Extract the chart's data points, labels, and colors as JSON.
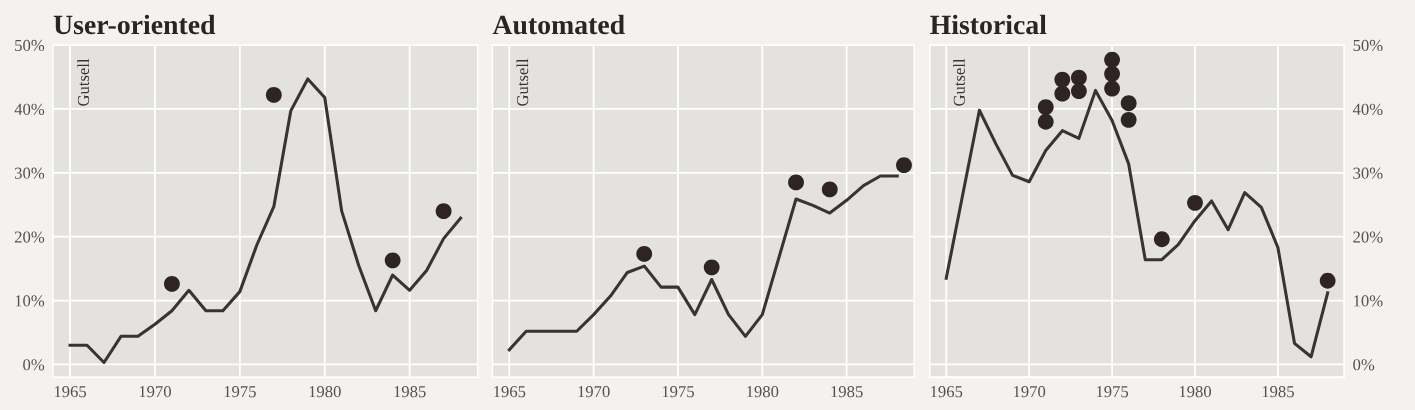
{
  "chart_data": [
    {
      "type": "line",
      "title": "User-oriented",
      "annotations": [
        "Gutsell"
      ],
      "xlim": [
        1964,
        1989
      ],
      "xticks": [
        1965,
        1970,
        1975,
        1980,
        1985
      ],
      "ylim": [
        -2,
        50
      ],
      "yticks": [
        {
          "value": 0,
          "label": "0%"
        },
        {
          "value": 10,
          "label": "10%"
        },
        {
          "value": 20,
          "label": "20%"
        },
        {
          "value": 30,
          "label": "30%"
        },
        {
          "value": 40,
          "label": "40%"
        },
        {
          "value": 50,
          "label": "50%"
        }
      ],
      "grid": true,
      "series": [
        {
          "type": "line",
          "color": "#3a3334",
          "x": [
            1965,
            1966,
            1967,
            1968,
            1969,
            1970,
            1971,
            1972,
            1973,
            1974,
            1975,
            1976,
            1977,
            1978,
            1979,
            1980,
            1981,
            1982,
            1983,
            1984,
            1985,
            1986,
            1987,
            1988
          ],
          "values": [
            3,
            3,
            0.3,
            4.4,
            4.4,
            6.3,
            8.4,
            11.6,
            8.4,
            8.4,
            11.4,
            18.7,
            24.7,
            39.7,
            44.7,
            41.8,
            24,
            15.5,
            8.4,
            14,
            11.6,
            14.7,
            19.7,
            22.9
          ]
        },
        {
          "type": "scatter",
          "color": "#2e2424",
          "marker": "circle",
          "x": [
            1971,
            1977,
            1984,
            1987
          ],
          "values": [
            12.6,
            42.2,
            16.3,
            24
          ]
        }
      ]
    },
    {
      "type": "line",
      "title": "Automated",
      "annotations": [
        "Gutsell"
      ],
      "xlim": [
        1964,
        1989
      ],
      "xticks": [
        1965,
        1970,
        1975,
        1980,
        1985
      ],
      "ylim": [
        -2,
        50
      ],
      "yticks": [
        {
          "value": 0,
          "label": null
        },
        {
          "value": 10,
          "label": null
        },
        {
          "value": 20,
          "label": null
        },
        {
          "value": 30,
          "label": null
        },
        {
          "value": 40,
          "label": null
        },
        {
          "value": 50,
          "label": null
        }
      ],
      "grid": true,
      "tick_labels": "x",
      "series": [
        {
          "type": "line",
          "color": "#3a3334",
          "x": [
            1965,
            1966,
            1967,
            1968,
            1969,
            1970,
            1971,
            1972,
            1973,
            1974,
            1975,
            1976,
            1977,
            1978,
            1979,
            1980,
            1982,
            1983,
            1984,
            1985,
            1986,
            1987,
            1988
          ],
          "values": [
            2.3,
            5.2,
            5.2,
            5.2,
            5.2,
            7.8,
            10.7,
            14.4,
            15.4,
            12.1,
            12.1,
            7.8,
            13.3,
            7.8,
            4.4,
            7.8,
            25.9,
            24.9,
            23.7,
            25.7,
            28,
            29.5,
            29.5
          ]
        },
        {
          "type": "scatter",
          "color": "#2e2424",
          "marker": "circle",
          "x": [
            1973,
            1977,
            1982,
            1984,
            1988.4
          ],
          "values": [
            17.3,
            15.2,
            28.5,
            27.4,
            31.2
          ]
        }
      ]
    },
    {
      "type": "line",
      "title": "Historical",
      "annotations": [
        "Gutsell"
      ],
      "xlim": [
        1964,
        1989
      ],
      "xticks": [
        1965,
        1970,
        1975,
        1980,
        1985
      ],
      "y2lim": [
        -2,
        50
      ],
      "y2ticks": [
        {
          "value": 0,
          "label": "0%"
        },
        {
          "value": 10,
          "label": "10%"
        },
        {
          "value": 20,
          "label": "20%"
        },
        {
          "value": 30,
          "label": "30%"
        },
        {
          "value": 40,
          "label": "40%"
        },
        {
          "value": 50,
          "label": "50%"
        }
      ],
      "grid": true,
      "series": [
        {
          "type": "line",
          "axis": "y2",
          "color": "#3a3334",
          "x": [
            1965,
            1967,
            1968,
            1969,
            1970,
            1971,
            1972,
            1973,
            1974,
            1975,
            1976,
            1977,
            1978,
            1979,
            1980,
            1981,
            1982,
            1983,
            1984,
            1985,
            1986,
            1987,
            1988
          ],
          "values": [
            13.5,
            39.8,
            34.5,
            29.6,
            28.6,
            33.5,
            36.6,
            35.4,
            42.9,
            38.2,
            31.4,
            16.4,
            16.4,
            18.8,
            22.5,
            25.6,
            21.1,
            26.9,
            24.6,
            18.3,
            3.3,
            1.2,
            11.2
          ]
        },
        {
          "type": "scatter",
          "axis": "y2",
          "color": "#2e2424",
          "marker": "circle",
          "x": [
            1971,
            1971,
            1972,
            1972,
            1973,
            1973,
            1975,
            1975,
            1975,
            1976,
            1976,
            1978,
            1980,
            1988
          ],
          "values": [
            40.3,
            38.0,
            44.6,
            42.4,
            44.9,
            42.8,
            47.7,
            45.5,
            43.2,
            40.9,
            38.3,
            19.6,
            25.3,
            13.1
          ]
        }
      ]
    }
  ]
}
